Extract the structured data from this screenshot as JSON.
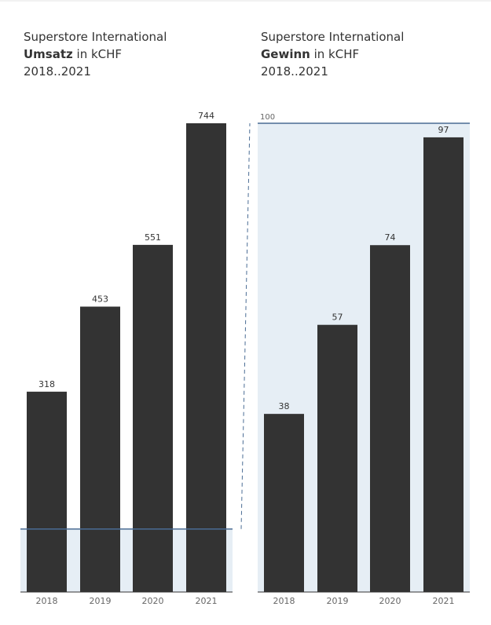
{
  "panels": [
    {
      "title_line1": "Superstore International",
      "title_bold": "Umsatz",
      "title_rest": " in kCHF",
      "title_line3": "2018..2021"
    },
    {
      "title_line1": "Superstore International",
      "title_bold": "Gewinn",
      "title_rest": " in kCHF",
      "title_line3": "2018..2021"
    }
  ],
  "colors": {
    "bar": "#333333",
    "band": "#e6eef5",
    "reference_line": "#4a6c94",
    "axis": "#333333"
  },
  "chart_data": [
    {
      "type": "bar",
      "categories": [
        "2018",
        "2019",
        "2020",
        "2021"
      ],
      "values": [
        318,
        453,
        551,
        744
      ],
      "title": "Superstore International Umsatz in kCHF 2018..2021",
      "xlabel": "",
      "ylabel": "",
      "ylim": [
        0,
        744
      ],
      "reference_line": 100
    },
    {
      "type": "bar",
      "categories": [
        "2018",
        "2019",
        "2020",
        "2021"
      ],
      "values": [
        38,
        57,
        74,
        97
      ],
      "title": "Superstore International Gewinn in kCHF 2018..2021",
      "xlabel": "",
      "ylabel": "",
      "ylim": [
        0,
        100
      ],
      "reference_line": 100,
      "reference_label": "100"
    }
  ]
}
